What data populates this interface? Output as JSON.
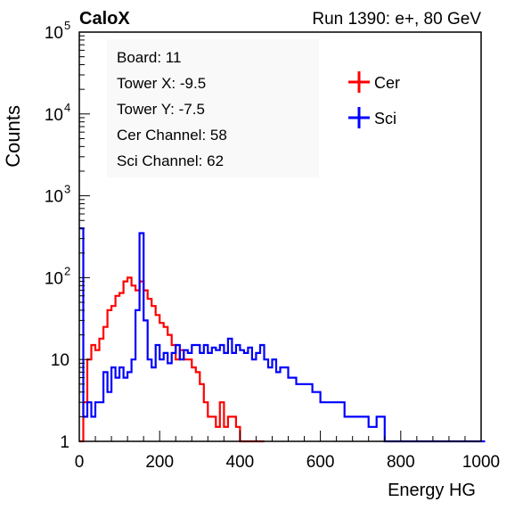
{
  "header": {
    "left_label": "CaloX",
    "right_label": "Run 1390: e+, 80 GeV"
  },
  "info_box": {
    "lines": [
      "Board: 11",
      "Tower X: -9.5",
      "Tower Y: -7.5",
      "Cer Channel: 58",
      "Sci Channel: 62"
    ]
  },
  "chart_data": {
    "type": "line",
    "title": "",
    "xlabel": "Energy HG",
    "ylabel": "Counts",
    "xlim": [
      0,
      1000
    ],
    "ylim": [
      1,
      100000
    ],
    "y_scale": "log",
    "grid": false,
    "legend_position": "top-right",
    "x_ticks": [
      "0",
      "200",
      "400",
      "600",
      "800",
      "1000"
    ],
    "y_ticks": [
      {
        "value": 1,
        "base": "1",
        "exp": ""
      },
      {
        "value": 10,
        "base": "10",
        "exp": ""
      },
      {
        "value": 100,
        "base": "10",
        "exp": "2"
      },
      {
        "value": 1000,
        "base": "10",
        "exp": "3"
      },
      {
        "value": 10000,
        "base": "10",
        "exp": "4"
      },
      {
        "value": 100000,
        "base": "10",
        "exp": "5"
      }
    ],
    "series": [
      {
        "name": "Cer",
        "color": "#ff0000",
        "x": [
          0,
          10,
          20,
          30,
          40,
          50,
          60,
          70,
          80,
          90,
          100,
          110,
          120,
          130,
          140,
          150,
          160,
          170,
          180,
          190,
          200,
          210,
          220,
          230,
          240,
          250,
          260,
          270,
          280,
          290,
          300,
          310,
          320,
          330,
          340,
          350,
          360,
          370,
          380,
          390,
          400,
          410,
          420,
          430,
          440,
          450
        ],
        "y": [
          1,
          3,
          10,
          15,
          13,
          18,
          25,
          40,
          45,
          60,
          65,
          90,
          100,
          80,
          70,
          90,
          70,
          55,
          45,
          35,
          28,
          25,
          20,
          15,
          10,
          13,
          10,
          10,
          8,
          7,
          5,
          3,
          2,
          2,
          1.5,
          3,
          1.5,
          2,
          2,
          1.5,
          1,
          1,
          1,
          1,
          1,
          1
        ]
      },
      {
        "name": "Sci",
        "color": "#0000ff",
        "x": [
          0,
          10,
          20,
          30,
          40,
          50,
          60,
          70,
          80,
          90,
          100,
          110,
          120,
          130,
          140,
          150,
          160,
          170,
          180,
          190,
          200,
          210,
          220,
          230,
          240,
          250,
          260,
          270,
          280,
          290,
          300,
          310,
          320,
          330,
          340,
          350,
          360,
          370,
          380,
          390,
          400,
          410,
          420,
          430,
          440,
          450,
          460,
          470,
          480,
          490,
          500,
          520,
          540,
          560,
          580,
          600,
          620,
          640,
          660,
          680,
          700,
          720,
          740,
          760,
          780,
          800,
          850,
          900,
          950,
          1000
        ],
        "y": [
          400,
          2,
          3,
          2,
          3,
          3,
          7,
          4,
          8,
          6,
          8,
          6,
          7,
          10,
          40,
          350,
          30,
          10,
          8,
          15,
          10,
          12,
          9,
          12,
          15,
          10,
          13,
          12,
          15,
          15,
          12,
          15,
          12,
          14,
          13,
          15,
          12,
          18,
          12,
          15,
          13,
          12,
          14,
          10,
          12,
          15,
          10,
          8,
          10,
          7,
          8,
          6,
          5,
          5,
          4,
          3,
          3,
          3,
          2,
          2,
          2,
          1.5,
          2,
          1,
          1,
          1,
          1,
          1,
          1,
          1
        ]
      }
    ]
  }
}
